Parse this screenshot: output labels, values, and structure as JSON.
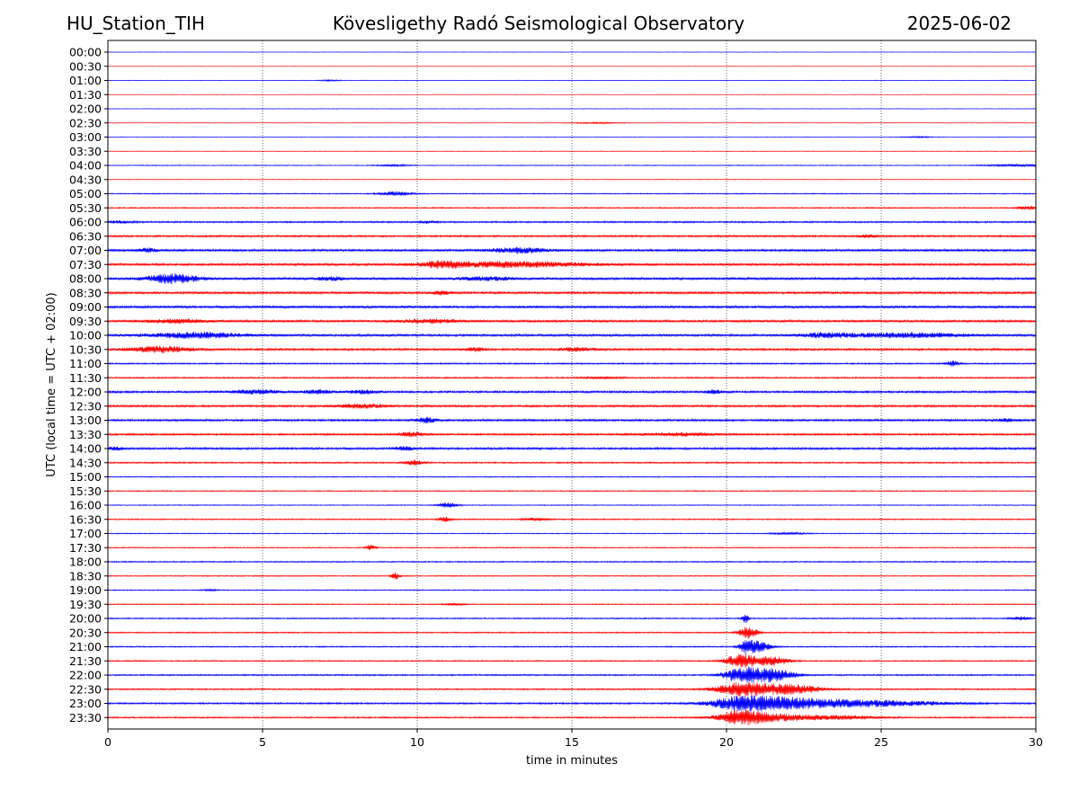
{
  "header": {
    "station": "HU_Station_TIH",
    "observatory": "Kövesligethy Radó Seismological Observatory",
    "date": "2025-06-02"
  },
  "chart_data": {
    "type": "line",
    "title": "Kövesligethy Radó Seismological Observatory",
    "xlabel": "time in minutes",
    "ylabel": "UTC (local time = UTC + 02:00)",
    "xlim": [
      0,
      30
    ],
    "x_ticks": [
      "0",
      "5",
      "10",
      "15",
      "20",
      "25",
      "30"
    ],
    "grid": "vertical dotted lines at x ticks",
    "trace_colors": [
      "#0000ff",
      "#ff0000"
    ],
    "rows": [
      {
        "label": "00:00",
        "noise": 0.12,
        "events": []
      },
      {
        "label": "00:30",
        "noise": 0.1,
        "events": []
      },
      {
        "label": "01:00",
        "noise": 0.15,
        "events": [
          {
            "t": 7.2,
            "a": 0.3,
            "d": 0.3
          }
        ]
      },
      {
        "label": "01:30",
        "noise": 0.1,
        "events": []
      },
      {
        "label": "02:00",
        "noise": 0.14,
        "events": []
      },
      {
        "label": "02:30",
        "noise": 0.12,
        "events": [
          {
            "t": 15.8,
            "a": 0.3,
            "d": 0.8
          }
        ]
      },
      {
        "label": "03:00",
        "noise": 0.13,
        "events": [
          {
            "t": 26.2,
            "a": 0.3,
            "d": 0.5
          }
        ]
      },
      {
        "label": "03:30",
        "noise": 0.14,
        "events": []
      },
      {
        "label": "04:00",
        "noise": 0.2,
        "events": [
          {
            "t": 9.2,
            "a": 0.4,
            "d": 0.5
          },
          {
            "t": 29.5,
            "a": 0.5,
            "d": 1.0
          }
        ]
      },
      {
        "label": "04:30",
        "noise": 0.15,
        "events": []
      },
      {
        "label": "05:00",
        "noise": 0.25,
        "events": [
          {
            "t": 9.3,
            "a": 1.0,
            "d": 0.5
          }
        ]
      },
      {
        "label": "05:30",
        "noise": 0.3,
        "events": [
          {
            "t": 29.8,
            "a": 0.9,
            "d": 0.4
          }
        ]
      },
      {
        "label": "06:00",
        "noise": 0.4,
        "events": [
          {
            "t": 0.3,
            "a": 0.6,
            "d": 0.4
          },
          {
            "t": 10.3,
            "a": 0.5,
            "d": 0.3
          }
        ]
      },
      {
        "label": "06:30",
        "noise": 0.45,
        "events": [
          {
            "t": 24.6,
            "a": 0.6,
            "d": 0.3
          }
        ]
      },
      {
        "label": "07:00",
        "noise": 0.55,
        "events": [
          {
            "t": 1.3,
            "a": 0.9,
            "d": 0.3
          },
          {
            "t": 13.3,
            "a": 1.2,
            "d": 0.9
          }
        ]
      },
      {
        "label": "07:30",
        "noise": 0.55,
        "events": [
          {
            "t": 10.8,
            "a": 1.2,
            "d": 0.6
          },
          {
            "t": 13.0,
            "a": 1.3,
            "d": 2.5
          }
        ]
      },
      {
        "label": "08:00",
        "noise": 0.6,
        "events": [
          {
            "t": 2.1,
            "a": 2.2,
            "d": 0.8
          },
          {
            "t": 7.2,
            "a": 0.8,
            "d": 0.4
          },
          {
            "t": 12.2,
            "a": 0.8,
            "d": 0.8
          }
        ]
      },
      {
        "label": "08:30",
        "noise": 0.55,
        "events": [
          {
            "t": 10.8,
            "a": 0.8,
            "d": 0.3
          }
        ]
      },
      {
        "label": "09:00",
        "noise": 0.6,
        "events": []
      },
      {
        "label": "09:30",
        "noise": 0.55,
        "events": [
          {
            "t": 2.2,
            "a": 0.8,
            "d": 1.0
          },
          {
            "t": 10.4,
            "a": 0.8,
            "d": 1.0
          }
        ]
      },
      {
        "label": "10:00",
        "noise": 0.55,
        "events": [
          {
            "t": 2.8,
            "a": 1.4,
            "d": 1.5
          },
          {
            "t": 23.2,
            "a": 1.1,
            "d": 0.8
          },
          {
            "t": 25.8,
            "a": 1.1,
            "d": 1.8
          }
        ]
      },
      {
        "label": "10:30",
        "noise": 0.5,
        "events": [
          {
            "t": 1.7,
            "a": 1.5,
            "d": 1.0
          },
          {
            "t": 11.9,
            "a": 0.9,
            "d": 0.3
          },
          {
            "t": 15.2,
            "a": 0.8,
            "d": 0.6
          }
        ]
      },
      {
        "label": "11:00",
        "noise": 0.35,
        "events": [
          {
            "t": 27.3,
            "a": 1.3,
            "d": 0.2
          }
        ]
      },
      {
        "label": "11:30",
        "noise": 0.35,
        "events": [
          {
            "t": 16.0,
            "a": 0.4,
            "d": 0.6
          }
        ]
      },
      {
        "label": "12:00",
        "noise": 0.5,
        "events": [
          {
            "t": 4.8,
            "a": 0.9,
            "d": 0.8
          },
          {
            "t": 6.8,
            "a": 0.9,
            "d": 0.5
          },
          {
            "t": 8.3,
            "a": 0.8,
            "d": 0.5
          },
          {
            "t": 19.6,
            "a": 0.8,
            "d": 0.3
          }
        ]
      },
      {
        "label": "12:30",
        "noise": 0.5,
        "events": [
          {
            "t": 8.2,
            "a": 0.9,
            "d": 0.8
          }
        ]
      },
      {
        "label": "13:00",
        "noise": 0.5,
        "events": [
          {
            "t": 10.3,
            "a": 1.3,
            "d": 0.3
          },
          {
            "t": 29.0,
            "a": 0.6,
            "d": 0.4
          }
        ]
      },
      {
        "label": "13:30",
        "noise": 0.45,
        "events": [
          {
            "t": 9.8,
            "a": 1.2,
            "d": 0.4
          },
          {
            "t": 18.5,
            "a": 0.7,
            "d": 1.2
          }
        ]
      },
      {
        "label": "14:00",
        "noise": 0.5,
        "events": [
          {
            "t": 0.2,
            "a": 0.7,
            "d": 0.3
          },
          {
            "t": 9.6,
            "a": 0.8,
            "d": 0.3
          }
        ]
      },
      {
        "label": "14:30",
        "noise": 0.35,
        "events": [
          {
            "t": 9.9,
            "a": 1.1,
            "d": 0.3
          }
        ]
      },
      {
        "label": "15:00",
        "noise": 0.25,
        "events": []
      },
      {
        "label": "15:30",
        "noise": 0.25,
        "events": []
      },
      {
        "label": "16:00",
        "noise": 0.22,
        "events": [
          {
            "t": 11.0,
            "a": 1.3,
            "d": 0.3
          }
        ]
      },
      {
        "label": "16:30",
        "noise": 0.3,
        "events": [
          {
            "t": 10.9,
            "a": 1.3,
            "d": 0.2
          },
          {
            "t": 13.8,
            "a": 0.7,
            "d": 0.4
          }
        ]
      },
      {
        "label": "17:00",
        "noise": 0.22,
        "events": [
          {
            "t": 22.0,
            "a": 0.4,
            "d": 0.6
          }
        ]
      },
      {
        "label": "17:30",
        "noise": 0.25,
        "events": [
          {
            "t": 8.5,
            "a": 1.4,
            "d": 0.15
          }
        ]
      },
      {
        "label": "18:00",
        "noise": 0.3,
        "events": []
      },
      {
        "label": "18:30",
        "noise": 0.25,
        "events": [
          {
            "t": 9.3,
            "a": 1.6,
            "d": 0.15
          }
        ]
      },
      {
        "label": "19:00",
        "noise": 0.25,
        "events": [
          {
            "t": 3.3,
            "a": 0.4,
            "d": 0.2
          }
        ]
      },
      {
        "label": "19:30",
        "noise": 0.25,
        "events": [
          {
            "t": 11.2,
            "a": 0.5,
            "d": 0.3
          }
        ]
      },
      {
        "label": "20:00",
        "noise": 0.3,
        "events": [
          {
            "t": 20.6,
            "a": 2.5,
            "d": 0.1
          },
          {
            "t": 29.5,
            "a": 0.8,
            "d": 0.3
          }
        ]
      },
      {
        "label": "20:30",
        "noise": 0.3,
        "events": [
          {
            "t": 20.7,
            "a": 3.0,
            "d": 0.3
          }
        ]
      },
      {
        "label": "21:00",
        "noise": 0.3,
        "events": [
          {
            "t": 20.6,
            "a": 2.5,
            "d": 0.2
          },
          {
            "t": 21.0,
            "a": 3.0,
            "d": 0.4
          }
        ]
      },
      {
        "label": "21:30",
        "noise": 0.3,
        "events": [
          {
            "t": 20.5,
            "a": 3.5,
            "d": 0.5
          },
          {
            "t": 21.5,
            "a": 2.5,
            "d": 0.5
          }
        ]
      },
      {
        "label": "22:00",
        "noise": 0.35,
        "events": [
          {
            "t": 20.5,
            "a": 3.5,
            "d": 0.6
          },
          {
            "t": 21.5,
            "a": 3.0,
            "d": 0.7
          }
        ]
      },
      {
        "label": "22:30",
        "noise": 0.35,
        "events": [
          {
            "t": 20.5,
            "a": 3.5,
            "d": 0.8
          },
          {
            "t": 22.0,
            "a": 2.5,
            "d": 1.0
          }
        ]
      },
      {
        "label": "23:00",
        "noise": 0.4,
        "events": [
          {
            "t": 20.5,
            "a": 3.5,
            "d": 1.0
          },
          {
            "t": 22.0,
            "a": 2.5,
            "d": 1.2
          },
          {
            "t": 24.0,
            "a": 1.5,
            "d": 1.5
          },
          {
            "t": 26.0,
            "a": 0.8,
            "d": 1.5
          }
        ]
      },
      {
        "label": "23:30",
        "noise": 0.35,
        "events": [
          {
            "t": 20.5,
            "a": 3.5,
            "d": 0.8
          },
          {
            "t": 22.0,
            "a": 1.5,
            "d": 1.2
          },
          {
            "t": 24.0,
            "a": 0.8,
            "d": 1.0
          }
        ]
      }
    ]
  }
}
